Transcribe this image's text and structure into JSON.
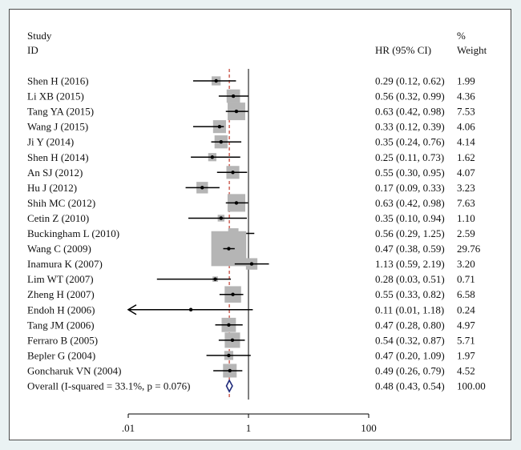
{
  "chart_data": {
    "type": "forest",
    "header": {
      "study_line1": "Study",
      "study_line2": "ID",
      "hr_label": "HR (95% CI)",
      "weight_line1": "%",
      "weight_line2": "Weight"
    },
    "studies": [
      {
        "id": "Shen H (2016)",
        "hr": 0.29,
        "lo": 0.12,
        "hi": 0.62,
        "ci_text": "0.29 (0.12, 0.62)",
        "weight": "1.99"
      },
      {
        "id": "Li XB (2015)",
        "hr": 0.56,
        "lo": 0.32,
        "hi": 0.99,
        "ci_text": "0.56 (0.32, 0.99)",
        "weight": "4.36"
      },
      {
        "id": "Tang YA (2015)",
        "hr": 0.63,
        "lo": 0.42,
        "hi": 0.98,
        "ci_text": "0.63 (0.42, 0.98)",
        "weight": "7.53"
      },
      {
        "id": "Wang J (2015)",
        "hr": 0.33,
        "lo": 0.12,
        "hi": 0.39,
        "ci_text": "0.33 (0.12, 0.39)",
        "weight": "4.06"
      },
      {
        "id": "Ji Y (2014)",
        "hr": 0.35,
        "lo": 0.24,
        "hi": 0.76,
        "ci_text": "0.35 (0.24, 0.76)",
        "weight": "4.14"
      },
      {
        "id": "Shen H (2014)",
        "hr": 0.25,
        "lo": 0.11,
        "hi": 0.73,
        "ci_text": "0.25 (0.11, 0.73)",
        "weight": "1.62"
      },
      {
        "id": "An SJ (2012)",
        "hr": 0.55,
        "lo": 0.3,
        "hi": 0.95,
        "ci_text": "0.55 (0.30, 0.95)",
        "weight": "4.07"
      },
      {
        "id": "Hu J (2012)",
        "hr": 0.17,
        "lo": 0.09,
        "hi": 0.33,
        "ci_text": "0.17 (0.09, 0.33)",
        "weight": "3.23"
      },
      {
        "id": "Shih MC (2012)",
        "hr": 0.63,
        "lo": 0.42,
        "hi": 0.98,
        "ci_text": "0.63 (0.42, 0.98)",
        "weight": "7.63"
      },
      {
        "id": "Cetin Z (2010)",
        "hr": 0.35,
        "lo": 0.1,
        "hi": 0.94,
        "ci_text": "0.35 (0.10, 0.94)",
        "weight": "1.10"
      },
      {
        "id": "Buckingham L (2010)",
        "hr": 0.56,
        "lo": 0.29,
        "hi": 1.25,
        "ci_text": "0.56 (0.29, 1.25)",
        "weight": "2.59"
      },
      {
        "id": "Wang C (2009)",
        "hr": 0.47,
        "lo": 0.38,
        "hi": 0.59,
        "ci_text": "0.47 (0.38, 0.59)",
        "weight": "29.76"
      },
      {
        "id": "Inamura K (2007)",
        "hr": 1.13,
        "lo": 0.59,
        "hi": 2.19,
        "ci_text": "1.13 (0.59, 2.19)",
        "weight": "3.20"
      },
      {
        "id": "Lim WT (2007)",
        "hr": 0.28,
        "lo": 0.03,
        "hi": 0.51,
        "ci_text": "0.28 (0.03, 0.51)",
        "weight": "0.71"
      },
      {
        "id": "Zheng H (2007)",
        "hr": 0.55,
        "lo": 0.33,
        "hi": 0.82,
        "ci_text": "0.55 (0.33, 0.82)",
        "weight": "6.58"
      },
      {
        "id": "Endoh H (2006)",
        "hr": 0.11,
        "lo": 0.01,
        "hi": 1.18,
        "ci_text": "0.11 (0.01, 1.18)",
        "weight": "0.24",
        "arrow_left": true
      },
      {
        "id": "Tang JM (2006)",
        "hr": 0.47,
        "lo": 0.28,
        "hi": 0.8,
        "ci_text": "0.47 (0.28, 0.80)",
        "weight": "4.97"
      },
      {
        "id": "Ferraro B (2005)",
        "hr": 0.54,
        "lo": 0.32,
        "hi": 0.87,
        "ci_text": "0.54 (0.32, 0.87)",
        "weight": "5.71"
      },
      {
        "id": "Bepler G (2004)",
        "hr": 0.47,
        "lo": 0.2,
        "hi": 1.09,
        "ci_text": "0.47 (0.20, 1.09)",
        "weight": "1.97"
      },
      {
        "id": "Goncharuk VN (2004)",
        "hr": 0.49,
        "lo": 0.26,
        "hi": 0.79,
        "ci_text": "0.49 (0.26, 0.79)",
        "weight": "4.52"
      }
    ],
    "overall": {
      "label": "Overall  (I-squared = 33.1%, p = 0.076)",
      "hr": 0.48,
      "lo": 0.43,
      "hi": 0.54,
      "ci_text": "0.48 (0.43, 0.54)",
      "weight": "100.00"
    },
    "x_axis": {
      "scale": "log",
      "ticks": [
        {
          "value": 0.01,
          "label": ".01"
        },
        {
          "value": 1,
          "label": "1"
        },
        {
          "value": 100,
          "label": "100"
        }
      ]
    },
    "null_line": 1,
    "pooled_line": 0.48,
    "colors": {
      "box": "#b5b5b5",
      "ci_line": "#000000",
      "null_line": "#000000",
      "pooled_line": "#c0392b",
      "diamond": "#1f2a7a"
    }
  }
}
